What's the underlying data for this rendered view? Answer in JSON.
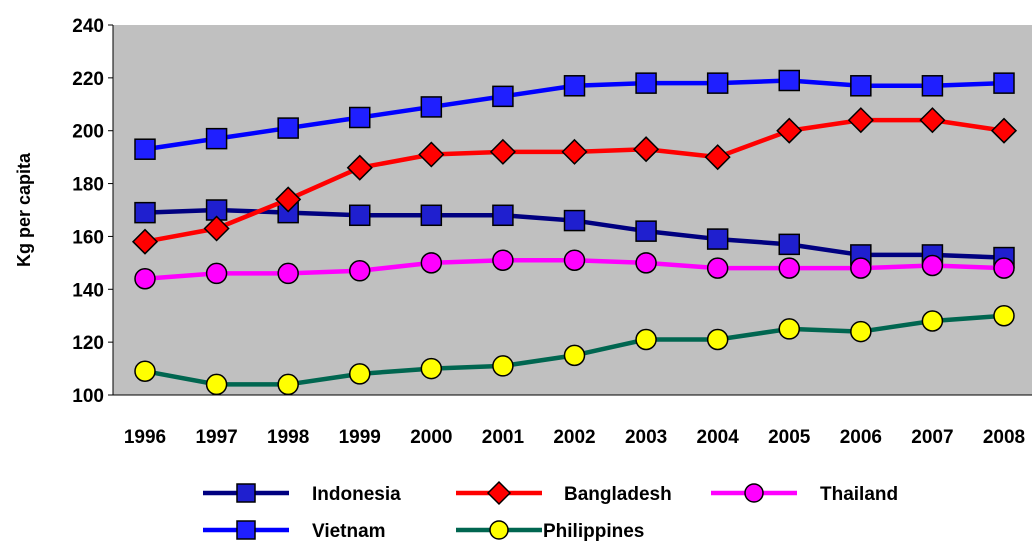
{
  "chart_data": {
    "type": "line",
    "title": "",
    "xlabel": "",
    "ylabel": "Kg per capita",
    "ylim": [
      100,
      240
    ],
    "yticks": [
      100,
      120,
      140,
      160,
      180,
      200,
      220,
      240
    ],
    "grid": false,
    "legend_position": "bottom",
    "categories": [
      "1996",
      "1997",
      "1998",
      "1999",
      "2000",
      "2001",
      "2002",
      "2003",
      "2004",
      "2005",
      "2006",
      "2007",
      "2008"
    ],
    "series": [
      {
        "name": "Indonesia",
        "color": "#000080",
        "marker": "square",
        "marker_fill": "#1f1fcf",
        "values": [
          169,
          170,
          169,
          168,
          168,
          168,
          166,
          162,
          159,
          157,
          153,
          153,
          152
        ]
      },
      {
        "name": "Bangladesh",
        "color": "#ff0000",
        "marker": "diamond",
        "marker_fill": "#ff0000",
        "values": [
          158,
          163,
          174,
          186,
          191,
          192,
          192,
          193,
          190,
          200,
          204,
          204,
          200
        ]
      },
      {
        "name": "Thailand",
        "color": "#ff00ff",
        "marker": "circle",
        "marker_fill": "#ff00ff",
        "values": [
          144,
          146,
          146,
          147,
          150,
          151,
          151,
          150,
          148,
          148,
          148,
          149,
          148
        ]
      },
      {
        "name": "Vietnam",
        "color": "#0000ff",
        "marker": "square",
        "marker_fill": "#1f1fff",
        "values": [
          193,
          197,
          201,
          205,
          209,
          213,
          217,
          218,
          218,
          219,
          217,
          217,
          218
        ]
      },
      {
        "name": "Philippines",
        "color": "#006650",
        "marker": "circle",
        "marker_fill": "#ffff00",
        "values": [
          109,
          104,
          104,
          108,
          110,
          111,
          115,
          121,
          121,
          125,
          124,
          128,
          130
        ]
      }
    ],
    "plot_background": "#c0c0c0"
  }
}
